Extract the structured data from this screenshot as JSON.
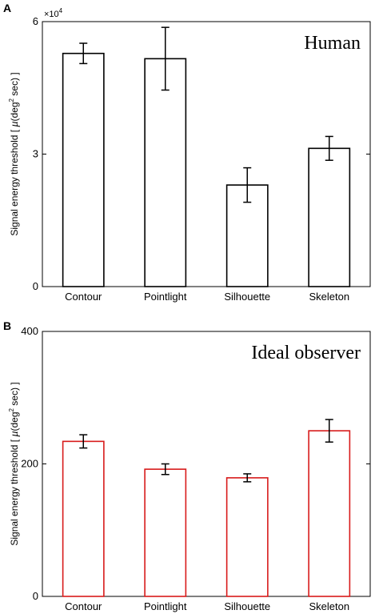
{
  "chart_data": [
    {
      "type": "bar",
      "panel": "A",
      "title": "Human",
      "ylabel_parts": [
        "Signal energy threshold [ ",
        "μ",
        "(deg",
        "2",
        " sec) ]"
      ],
      "xlabel": "",
      "categories": [
        "Contour",
        "Pointlight",
        "Silhouette",
        "Skeleton"
      ],
      "values": [
        52800,
        51600,
        23000,
        31300
      ],
      "errors": [
        2300,
        7100,
        3900,
        2700
      ],
      "ylim": [
        0,
        60000
      ],
      "yticks": [
        0,
        30000,
        60000
      ],
      "yticklabels": [
        "0",
        "3",
        "6"
      ],
      "yscale_label": [
        "×10",
        "4"
      ],
      "bar_color": "#000000",
      "grid": false
    },
    {
      "type": "bar",
      "panel": "B",
      "title": "Ideal observer",
      "ylabel_parts": [
        "Signal energy threshold [ ",
        "μ",
        "(deg",
        "2",
        " sec) ]"
      ],
      "xlabel": "",
      "categories": [
        "Contour",
        "Pointlight",
        "Silhouette",
        "Skeleton"
      ],
      "values": [
        234,
        192,
        179,
        250
      ],
      "errors": [
        10,
        8,
        6,
        17
      ],
      "ylim": [
        0,
        400
      ],
      "yticks": [
        0,
        200,
        400
      ],
      "yticklabels": [
        "0",
        "200",
        "400"
      ],
      "bar_color": "#d81b1b",
      "grid": false
    }
  ]
}
